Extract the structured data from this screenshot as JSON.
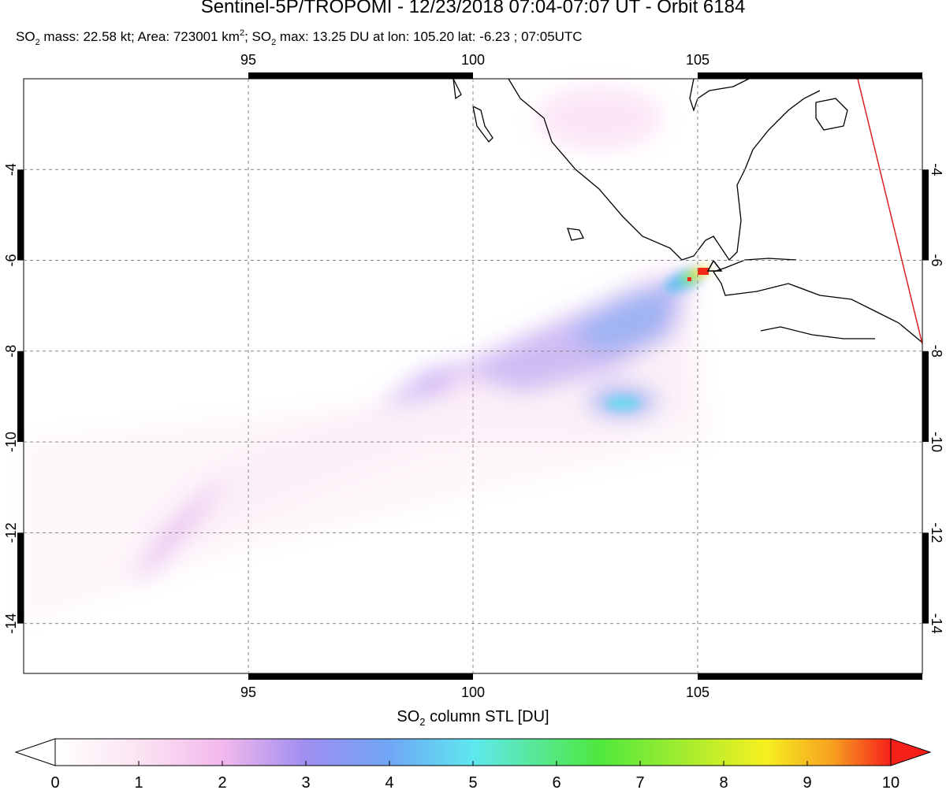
{
  "title": "Sentinel-5P/TROPOMI - 12/23/2018 07:04-07:07 UT - Orbit 6184",
  "subtitle": [
    "SO",
    "2",
    " mass: 22.58 kt; Area: 723001 km",
    "2",
    "; SO",
    "2",
    " max: 13.25 DU at lon: 105.20 lat: -6.23 ; 07:05UTC"
  ],
  "map": {
    "xlim": [
      90,
      110
    ],
    "ylim": [
      -15.1,
      -2
    ],
    "xticks": [
      95,
      100,
      105
    ],
    "yticks": [
      -4,
      -6,
      -8,
      -10,
      -12,
      -14
    ],
    "grid": true
  },
  "colorbar": {
    "label": [
      "SO",
      "2",
      " column STL [DU]"
    ],
    "lim": [
      0,
      10
    ],
    "ticks": [
      0,
      1,
      2,
      3,
      4,
      5,
      6,
      7,
      8,
      9,
      10
    ]
  }
}
